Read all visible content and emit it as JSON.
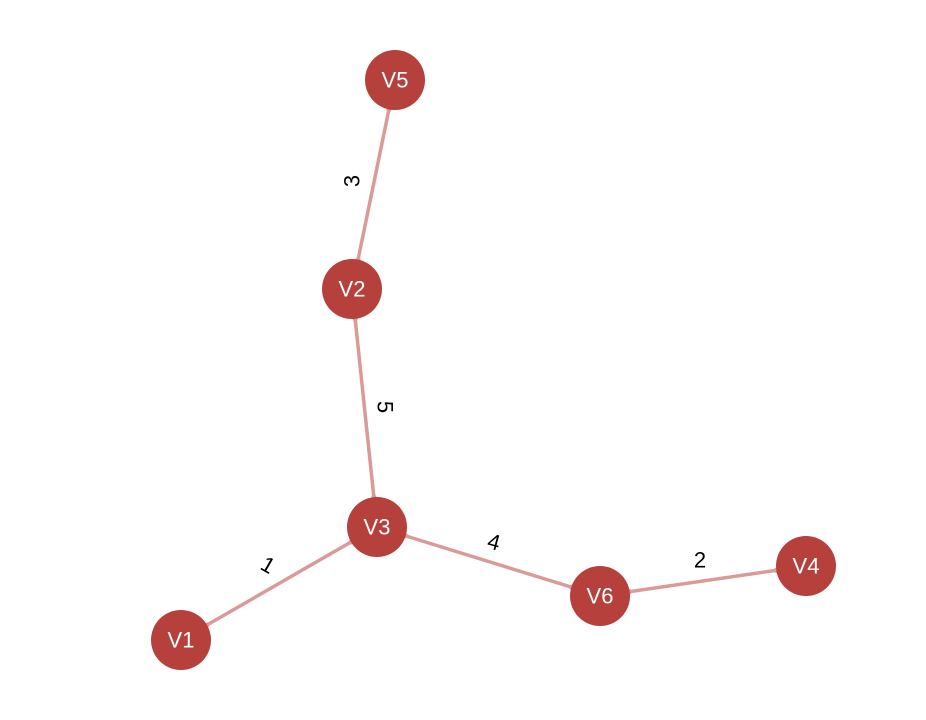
{
  "colors": {
    "node_fill": "#b5403c",
    "node_text": "#ffffff",
    "edge_stroke": "#d99a98",
    "edge_text": "#000000",
    "background": "#ffffff"
  },
  "nodes": [
    {
      "id": "V5",
      "label": "V5"
    },
    {
      "id": "V2",
      "label": "V2"
    },
    {
      "id": "V3",
      "label": "V3"
    },
    {
      "id": "V1",
      "label": "V1"
    },
    {
      "id": "V6",
      "label": "V6"
    },
    {
      "id": "V4",
      "label": "V4"
    }
  ],
  "edges": [
    {
      "source": "V2",
      "target": "V5",
      "weight": "3"
    },
    {
      "source": "V3",
      "target": "V2",
      "weight": "5"
    },
    {
      "source": "V1",
      "target": "V3",
      "weight": "1"
    },
    {
      "source": "V3",
      "target": "V6",
      "weight": "4"
    },
    {
      "source": "V6",
      "target": "V4",
      "weight": "2"
    }
  ]
}
